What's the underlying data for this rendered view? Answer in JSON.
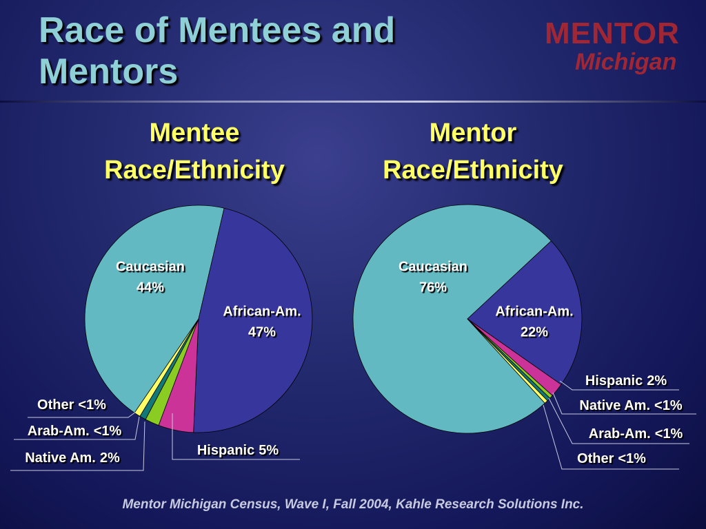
{
  "title": "Race of Mentees and Mentors",
  "logo": {
    "line1": "MENTOR",
    "line2": "Michigan"
  },
  "footer": "Mentor Michigan Census, Wave I, Fall 2004, Kahle Research Solutions Inc.",
  "chart_data": [
    {
      "type": "pie",
      "title": "Mentee Race/Ethnicity",
      "categories": [
        "Caucasian",
        "African-Am.",
        "Hispanic",
        "Native Am.",
        "Arab-Am.",
        "Other"
      ],
      "values": [
        44,
        47,
        5,
        2,
        0.9,
        0.9
      ],
      "value_labels": [
        "44%",
        "47%",
        "5%",
        "2%",
        "<1%",
        "<1%"
      ],
      "colors": [
        "#63b9c1",
        "#37369c",
        "#cc3399",
        "#8acc22",
        "#127878",
        "#ffff66"
      ]
    },
    {
      "type": "pie",
      "title": "Mentor Race/Ethnicity",
      "categories": [
        "Caucasian",
        "African-Am.",
        "Hispanic",
        "Native Am.",
        "Arab-Am.",
        "Other"
      ],
      "values": [
        76,
        22,
        2,
        0.5,
        0.5,
        0.5
      ],
      "value_labels": [
        "76%",
        "22%",
        "2%",
        "<1%",
        "<1%",
        "<1%"
      ],
      "colors": [
        "#63b9c1",
        "#37369c",
        "#cc3399",
        "#8acc22",
        "#127878",
        "#ffff66"
      ]
    }
  ]
}
